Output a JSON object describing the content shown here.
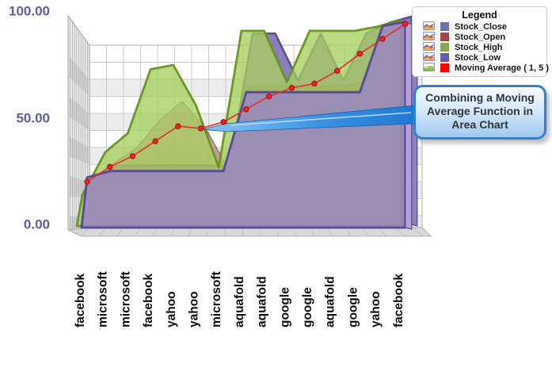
{
  "y_axis": {
    "tick_labels": [
      "100.00",
      "50.00",
      "0.00"
    ],
    "color": "#5f5f9e"
  },
  "legend": {
    "title": "Legend",
    "items": [
      {
        "label": "Stock_Close",
        "swatch": "#6e72a8",
        "icon": "area-chart-icon"
      },
      {
        "label": "Stock_Open",
        "swatch": "#a04848",
        "icon": "area-chart-icon"
      },
      {
        "label": "Stock_High",
        "swatch": "#88a858",
        "icon": "area-chart-icon"
      },
      {
        "label": "Stock_Low",
        "swatch": "#6a5ca8",
        "icon": "area-chart-icon"
      },
      {
        "label": "Moving Average ( 1, 5 )",
        "swatch": "#ff0000",
        "icon": "moving-average-icon"
      }
    ]
  },
  "callout": {
    "text": "Combining a Moving Average Function in Area Chart"
  },
  "chart_data": {
    "type": "area",
    "projection": "3d",
    "categories": [
      "facebook",
      "microsoft",
      "microsoft",
      "facebook",
      "yahoo",
      "yahoo",
      "microsoft",
      "aquafold",
      "aquafold",
      "google",
      "google",
      "aquafold",
      "google",
      "yahoo",
      "facebook"
    ],
    "series": [
      {
        "name": "Stock_Close",
        "color": "#8677b7",
        "values": [
          18,
          26,
          26,
          26,
          26,
          26,
          26,
          88,
          88,
          66,
          88,
          66,
          88,
          93,
          96
        ]
      },
      {
        "name": "Stock_Open",
        "color": "#9c4a48",
        "values": [
          20,
          28,
          35,
          48,
          57,
          45,
          26,
          64,
          64,
          64,
          64,
          64,
          66,
          88,
          93
        ]
      },
      {
        "name": "Stock_High",
        "color": "#a6d05f",
        "values": [
          13,
          33,
          42,
          72,
          74,
          55,
          26,
          90,
          90,
          66,
          90,
          90,
          90,
          92,
          95
        ]
      },
      {
        "name": "Stock_Low",
        "color": "#9a8abe",
        "values": [
          22,
          25,
          25,
          25,
          25,
          25,
          25,
          62,
          62,
          62,
          62,
          62,
          62,
          93,
          95
        ]
      }
    ],
    "moving_average": {
      "name": "Moving Average ( 1, 5 )",
      "color": "#e62e2e",
      "values": [
        20,
        27,
        32,
        39,
        46,
        45,
        48,
        54,
        60,
        64,
        66,
        72,
        80,
        87,
        94
      ]
    },
    "ylim": [
      0,
      100
    ],
    "y_ticks": [
      0,
      50,
      100
    ],
    "grid": true,
    "legend_position": "top-right"
  }
}
